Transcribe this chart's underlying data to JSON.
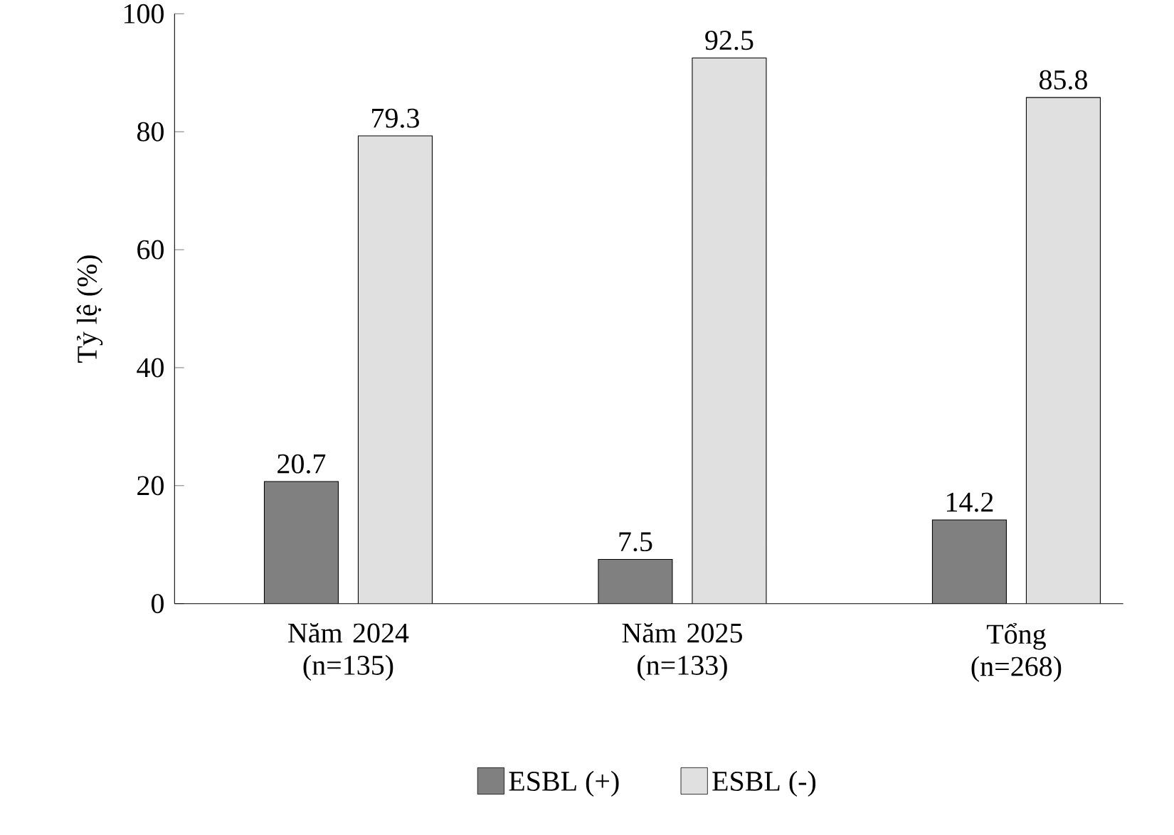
{
  "chart_data": {
    "type": "bar",
    "ylabel": "Tỷ lệ (%)",
    "categories": [
      "Năm 2024 (n=135)",
      "Năm 2025 (n=133)",
      "Tổng (n=268)"
    ],
    "series": [
      {
        "name": "ESBL (+)",
        "color": "#808080",
        "values": [
          20.7,
          7.5,
          14.2
        ]
      },
      {
        "name": "ESBL (-)",
        "color": "#e0e0e0",
        "values": [
          79.3,
          92.5,
          85.8
        ]
      }
    ],
    "ylim": [
      0,
      100
    ],
    "yticks": [
      0,
      20,
      40,
      60,
      80,
      100
    ],
    "data_labels": true,
    "legend": "bottom",
    "grid": false
  }
}
